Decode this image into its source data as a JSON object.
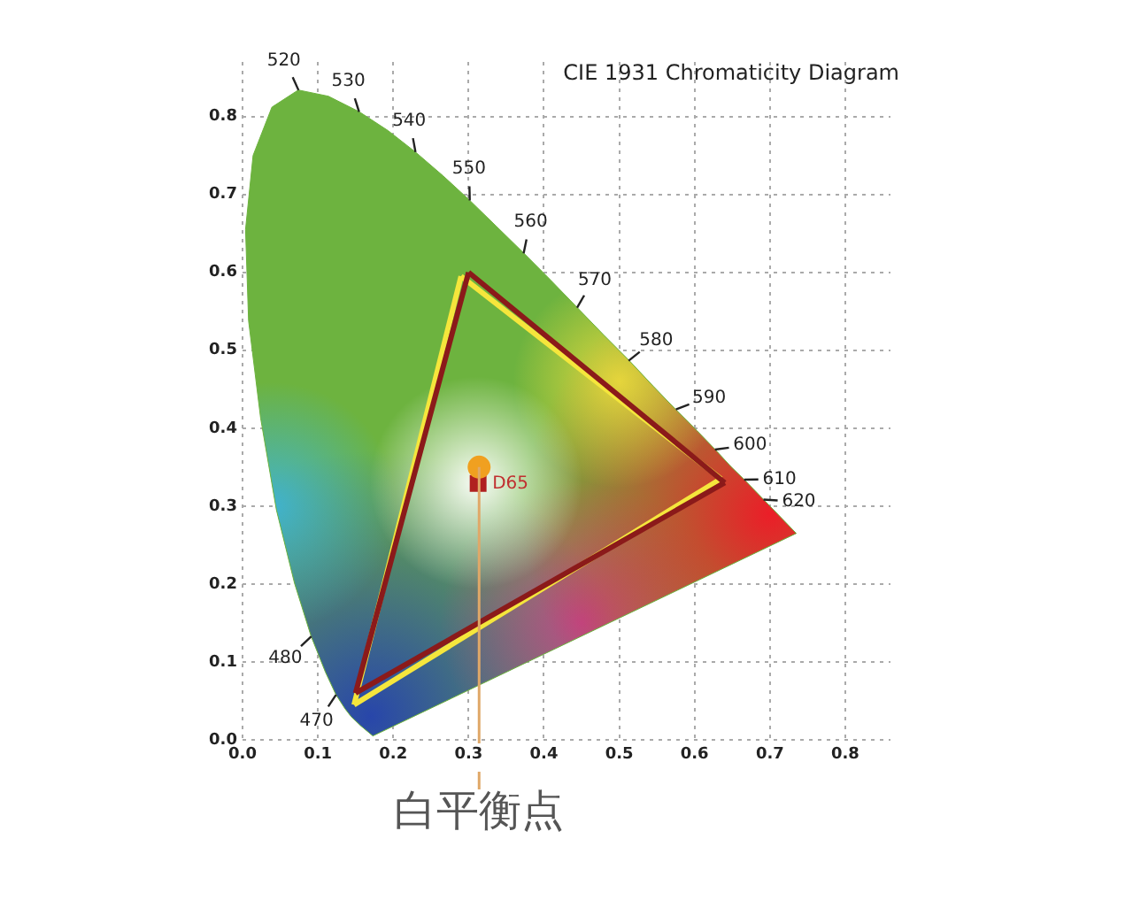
{
  "chart_data": {
    "type": "line",
    "title": "CIE 1931 Chromaticity Diagram",
    "xlim": [
      0,
      0.86
    ],
    "ylim": [
      0,
      0.87
    ],
    "xticks": [
      {
        "value": 0,
        "label": "0.0"
      },
      0.1,
      0.2,
      0.3,
      0.4,
      0.5,
      0.6,
      0.7,
      0.8
    ],
    "yticks": [
      {
        "value": 0,
        "label": "0.0"
      },
      0.1,
      0.2,
      0.3,
      0.4,
      0.5,
      0.6,
      0.7,
      0.8
    ],
    "grid": true,
    "series": [
      {
        "type": "area",
        "color": "#6db33f",
        "x": [
          0.173,
          0.157,
          0.144,
          0.136,
          0.124,
          0.11,
          0.091,
          0.069,
          0.045,
          0.024,
          0.008,
          0.004,
          0.014,
          0.039,
          0.074,
          0.114,
          0.155,
          0.193,
          0.23,
          0.266,
          0.302,
          0.337,
          0.373,
          0.409,
          0.444,
          0.479,
          0.513,
          0.545,
          0.575,
          0.603,
          0.627,
          0.648,
          0.666,
          0.68,
          0.692,
          0.719,
          0.73,
          0.735,
          0.173
        ],
        "values": [
          0.005,
          0.018,
          0.03,
          0.04,
          0.058,
          0.087,
          0.133,
          0.201,
          0.295,
          0.413,
          0.538,
          0.655,
          0.75,
          0.812,
          0.834,
          0.826,
          0.806,
          0.782,
          0.754,
          0.724,
          0.692,
          0.659,
          0.625,
          0.59,
          0.555,
          0.52,
          0.487,
          0.454,
          0.424,
          0.397,
          0.373,
          0.351,
          0.334,
          0.32,
          0.308,
          0.281,
          0.27,
          0.265,
          0.005
        ]
      },
      {
        "color": "#8b1a1a",
        "x": [
          0.3,
          0.64
        ],
        "values": [
          0.6,
          0.33
        ]
      },
      {
        "color": "#8b1a1a",
        "x": [
          0.15,
          0.64
        ],
        "values": [
          0.06,
          0.33
        ]
      },
      {
        "color": "#8b1a1a",
        "x": [
          0.15,
          0.3
        ],
        "values": [
          0.06,
          0.6
        ]
      },
      {
        "color": "#f5e63c",
        "x": [
          0.29,
          0.635
        ],
        "values": [
          0.595,
          0.335
        ]
      },
      {
        "color": "#f5e63c",
        "x": [
          0.148,
          0.635
        ],
        "values": [
          0.045,
          0.335
        ]
      },
      {
        "color": "#f5e63c",
        "x": [
          0.148,
          0.29
        ],
        "values": [
          0.045,
          0.595
        ]
      },
      {
        "type": "scatter",
        "marker": "circle",
        "color": "#f0a020",
        "x": [
          0.314
        ],
        "values": [
          0.35
        ]
      },
      {
        "type": "scatter",
        "marker": "square",
        "color": "#b02020",
        "x": [
          0.3127
        ],
        "values": [
          0.329
        ]
      }
    ],
    "annotations": [
      {
        "text": "470",
        "x": 0.1241,
        "y": 0.0578
      },
      {
        "text": "480",
        "x": 0.0913,
        "y": 0.1327
      },
      {
        "text": "520",
        "x": 0.0743,
        "y": 0.8338
      },
      {
        "text": "530",
        "x": 0.1547,
        "y": 0.8059
      },
      {
        "text": "540",
        "x": 0.2296,
        "y": 0.7543
      },
      {
        "text": "550",
        "x": 0.3016,
        "y": 0.6923
      },
      {
        "text": "560",
        "x": 0.3731,
        "y": 0.6245
      },
      {
        "text": "570",
        "x": 0.4441,
        "y": 0.5547
      },
      {
        "text": "580",
        "x": 0.5125,
        "y": 0.4866
      },
      {
        "text": "590",
        "x": 0.5752,
        "y": 0.4242
      },
      {
        "text": "600",
        "x": 0.627,
        "y": 0.3725
      },
      {
        "text": "610",
        "x": 0.6658,
        "y": 0.334
      },
      {
        "text": "620",
        "x": 0.6915,
        "y": 0.3083
      },
      {
        "text": "D65",
        "x": 0.3127,
        "y": 0.329
      },
      {
        "text": "白平衡点",
        "x": 0.314,
        "y": 0.35
      }
    ]
  }
}
